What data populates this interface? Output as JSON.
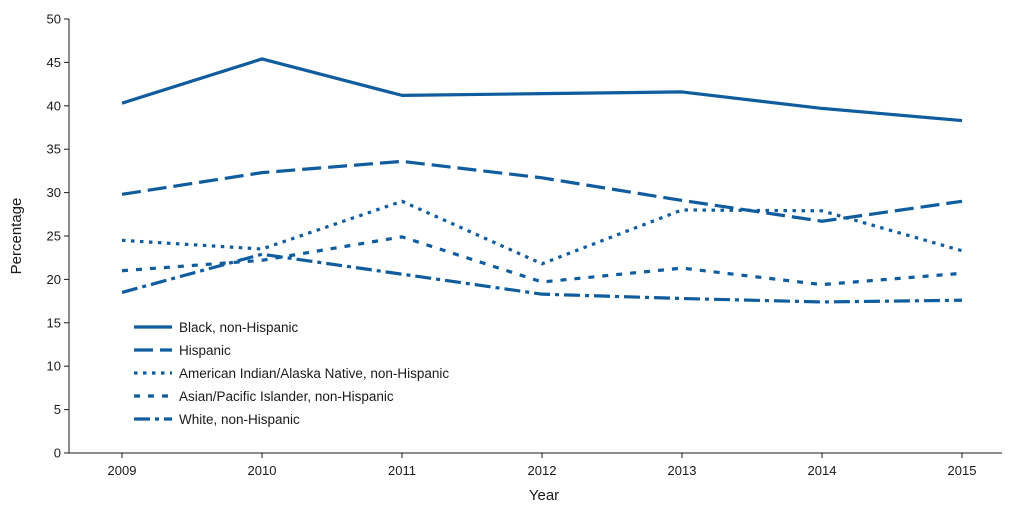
{
  "chart_data": {
    "type": "line",
    "title": "",
    "xlabel": "Year",
    "ylabel": "Percentage",
    "ylim": [
      0,
      50
    ],
    "yticks": [
      0,
      5,
      10,
      15,
      20,
      25,
      30,
      35,
      40,
      45,
      50
    ],
    "categories": [
      "2009",
      "2010",
      "2011",
      "2012",
      "2013",
      "2014",
      "2015"
    ],
    "grid": false,
    "legend_position": "bottom-left",
    "line_color": "#0f5c9e",
    "series": [
      {
        "name": "Black, non-Hispanic",
        "style": "solid",
        "values": [
          40.3,
          45.4,
          41.2,
          41.4,
          41.6,
          39.7,
          38.3
        ]
      },
      {
        "name": "Hispanic",
        "style": "dashed",
        "values": [
          29.8,
          32.3,
          33.6,
          31.7,
          29.1,
          26.7,
          29.0
        ]
      },
      {
        "name": "American Indian/Alaska Native, non-Hispanic",
        "style": "dotted",
        "values": [
          24.5,
          23.5,
          29.0,
          21.8,
          28.0,
          27.9,
          23.3
        ]
      },
      {
        "name": "Asian/Pacific Islander, non-Hispanic",
        "style": "short-dashed",
        "values": [
          21.0,
          22.2,
          24.9,
          19.7,
          21.3,
          19.4,
          20.7
        ]
      },
      {
        "name": "White, non-Hispanic",
        "style": "dash-dot",
        "values": [
          18.5,
          22.9,
          20.6,
          18.3,
          17.8,
          17.4,
          17.6
        ]
      }
    ]
  }
}
